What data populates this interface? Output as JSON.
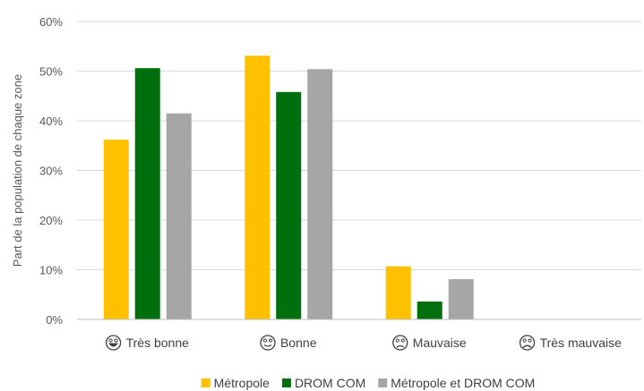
{
  "chart_data": {
    "type": "bar",
    "categories": [
      "Très bonne",
      "Bonne",
      "Mauvaise",
      "Très mauvaise"
    ],
    "category_icons": [
      "grinning-face-icon",
      "smiling-face-icon",
      "frowning-face-icon",
      "very-sad-face-icon"
    ],
    "series": [
      {
        "name": "Métropole",
        "color": "#FFC000",
        "values": [
          36.2,
          53.1,
          10.7,
          0
        ]
      },
      {
        "name": "DROM COM",
        "color": "#00700F",
        "values": [
          50.6,
          45.8,
          3.6,
          0
        ]
      },
      {
        "name": "Métropole et DROM COM",
        "color": "#A6A6A6",
        "values": [
          41.5,
          50.4,
          8.1,
          0
        ]
      }
    ],
    "ylabel": "Part de la population de chaque zone",
    "xlabel": "",
    "title": "",
    "ylim": [
      0,
      60
    ],
    "yticks": [
      0,
      10,
      20,
      30,
      40,
      50,
      60
    ],
    "ytick_labels": [
      "0%",
      "10%",
      "20%",
      "30%",
      "40%",
      "50%",
      "60%"
    ],
    "grid": true,
    "legend_position": "bottom"
  }
}
